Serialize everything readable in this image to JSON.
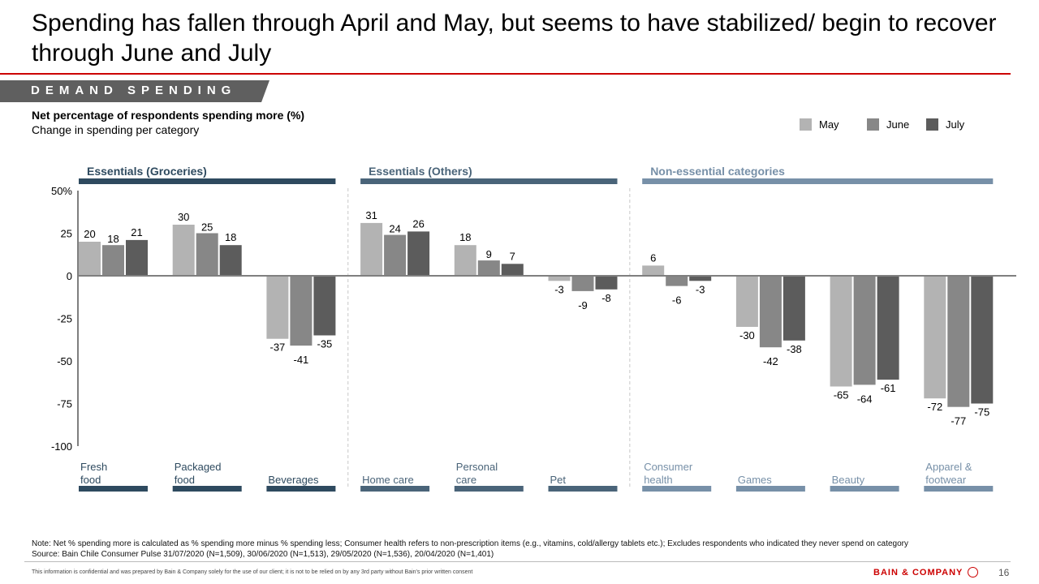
{
  "header": {
    "title": "Spending has fallen through April and May, but seems to have stabilized/ begin to recover through June and July",
    "section_tag": "DEMAND SPENDING",
    "subtitle_bold": "Net percentage of respondents spending more (%)",
    "subtitle": "Change in spending per category"
  },
  "colors": {
    "may": "#b3b3b3",
    "june": "#878787",
    "july": "#5c5c5c",
    "essentials_groceries": "#2e4a5f",
    "essentials_others": "#4a6479",
    "non_essential": "#7790a8",
    "brand_red": "#cc0000"
  },
  "chart_data": {
    "type": "bar",
    "title": "Net percentage of respondents spending more (%)",
    "subtitle": "Change in spending per category",
    "xlabel": "",
    "ylabel": "",
    "ylim": [
      -100,
      50
    ],
    "yticks": [
      50,
      25,
      0,
      -25,
      -50,
      -75,
      -100
    ],
    "ytick_labels": [
      "50%",
      "25",
      "0",
      "-25",
      "-50",
      "-75",
      "-100"
    ],
    "grid": false,
    "legend": {
      "placement": "top-right",
      "entries": [
        "May",
        "June",
        "July"
      ]
    },
    "groups": [
      {
        "name": "Essentials (Groceries)",
        "categories": [
          0,
          1,
          2
        ]
      },
      {
        "name": "Essentials (Others)",
        "categories": [
          3,
          4,
          5
        ]
      },
      {
        "name": "Non-essential categories",
        "categories": [
          6,
          7,
          8,
          9
        ]
      }
    ],
    "categories": [
      "Fresh food",
      "Packaged food",
      "Beverages",
      "Home care",
      "Personal care",
      "Pet",
      "Consumer health",
      "Games",
      "Beauty",
      "Apparel & footwear"
    ],
    "category_label_lines": [
      [
        "Fresh",
        "food"
      ],
      [
        "Packaged",
        "food"
      ],
      [
        "Beverages"
      ],
      [
        "Home care"
      ],
      [
        "Personal",
        "care"
      ],
      [
        "Pet"
      ],
      [
        "Consumer",
        "health"
      ],
      [
        "Games"
      ],
      [
        "Beauty"
      ],
      [
        "Apparel &",
        "footwear"
      ]
    ],
    "series": [
      {
        "name": "May",
        "values": [
          20,
          30,
          -37,
          31,
          18,
          -3,
          6,
          -30,
          -65,
          -72
        ]
      },
      {
        "name": "June",
        "values": [
          18,
          25,
          -41,
          24,
          9,
          -9,
          -6,
          -42,
          -64,
          -77
        ]
      },
      {
        "name": "July",
        "values": [
          21,
          18,
          -35,
          26,
          7,
          -8,
          -3,
          -38,
          -61,
          -75
        ]
      }
    ]
  },
  "footer": {
    "note": "Note: Net % spending more is calculated as % spending more minus % spending less; Consumer health refers to non-prescription items (e.g., vitamins, cold/allergy tablets etc.); Excludes respondents who indicated they never spend on category",
    "source": "Source: Bain Chile Consumer Pulse 31/07/2020 (N=1,509), 30/06/2020 (N=1,513), 29/05/2020 (N=1,536), 20/04/2020 (N=1,401)",
    "disclaimer": "This information is confidential and was prepared by Bain & Company solely for the use of our client; it is not to be relied on by any 3rd party without Bain's prior written consent",
    "brand": "BAIN & COMPANY",
    "page_number": "16"
  }
}
